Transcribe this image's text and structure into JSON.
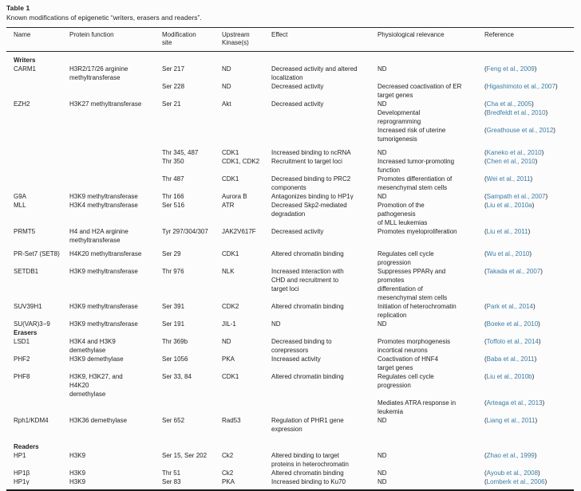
{
  "table": {
    "label": "Table 1",
    "caption": "Known modifications of epigenetic “writers, erasers and readers”.",
    "link_color": "#3b7ca7",
    "column_keys": [
      "name",
      "function",
      "site",
      "kinase",
      "effect",
      "relevance",
      "reference"
    ],
    "columns": [
      "Name",
      "Protein function",
      "Modification\nsite",
      "Upstream\nKinase(s)",
      "Effect",
      "Physiological relevance",
      "Reference"
    ],
    "rows": [
      {
        "type": "section",
        "label": "Writers"
      },
      {
        "type": "data",
        "cells": [
          "CARM1",
          "H3R2/17/26 arginine\nmethyltransferase",
          "Ser 217",
          "ND",
          "Decreased activity and altered\nlocalization",
          "ND"
        ],
        "ref": "Feng et al., 2009"
      },
      {
        "type": "data",
        "cells": [
          "",
          "",
          "Ser 228",
          "ND",
          "Decreased activity",
          "Decreased coactivation of ER\ntarget genes"
        ],
        "ref": "Higashimoto et al., 2007"
      },
      {
        "type": "data",
        "cells": [
          "EZH2",
          "H3K27 methyltransferase",
          "Ser 21",
          "Akt",
          "Decreased activity",
          "ND"
        ],
        "ref": "Cha et al., 2005"
      },
      {
        "type": "data",
        "cells": [
          "",
          "",
          "",
          "",
          "",
          "Developmental\nreprogramming"
        ],
        "ref": "Bredfeldt et al., 2010"
      },
      {
        "type": "data",
        "cells": [
          "",
          "",
          "",
          "",
          "",
          "Increased risk of uterine\ntumorigenesis"
        ],
        "ref": "Greathouse et al., 2012"
      },
      {
        "type": "data",
        "gap": "sm",
        "cells": [
          "",
          "",
          "Thr 345, 487",
          "CDK1",
          "Increased binding to ncRNA",
          "ND"
        ],
        "ref": "Kaneko et al., 2010"
      },
      {
        "type": "data",
        "cells": [
          "",
          "",
          "Thr 350",
          "CDK1, CDK2",
          "Recruitment to target loci",
          "Increased tumor-promoting\nfunction"
        ],
        "ref": "Chen et al., 2010"
      },
      {
        "type": "data",
        "cells": [
          "",
          "",
          "Thr 487",
          "CDK1",
          "Decreased binding to PRC2\ncomponents",
          "Promotes differentiation of\nmesenchymal stem cells"
        ],
        "ref": "Wei et al., 2011"
      },
      {
        "type": "data",
        "cells": [
          "G9A",
          "H3K9 methyltransferase",
          "Thr 166",
          "Aurora B",
          "Antagonizes binding to HP1γ",
          "ND"
        ],
        "ref": "Sampath et al., 2007"
      },
      {
        "type": "data",
        "cells": [
          "MLL",
          "H3K4 methyltransferase",
          "Ser 516",
          "ATR",
          "Decreased Skp2-mediated\ndegradation",
          "Promotion of the\npathogenesis\nof MLL leukemias"
        ],
        "ref": "Liu et al., 2010a"
      },
      {
        "type": "data",
        "cells": [
          "PRMT5",
          "H4 and H2A arginine\nmethyltransferase",
          "Tyr 297/304/307",
          "JAK2V617F",
          "Decreased activity",
          "Promotes myeloproliferation"
        ],
        "ref": "Liu et al., 2011"
      },
      {
        "type": "data",
        "gap": "sm",
        "cells": [
          "PR-Set7 (SET8)",
          "H4K20 methyltransferase",
          "Ser 29",
          "CDK1",
          "Altered chromatin binding",
          "Regulates cell cycle\nprogression"
        ],
        "ref": "Wu et al., 2010"
      },
      {
        "type": "data",
        "cells": [
          "SETDB1",
          "H3K9 methyltransferase",
          "Thr 976",
          "NLK",
          "Increased interaction with\nCHD and recruitment to\ntarget loci",
          "Suppresses PPARγ and\npromotes\ndifferentiation of\nmesenchymal stem cells"
        ],
        "ref": "Takada et al., 2007"
      },
      {
        "type": "data",
        "cells": [
          "SUV39H1",
          "H3K9 methyltransferase",
          "Ser 391",
          "CDK2",
          "Altered chromatin binding",
          "Initiation of heterochromatin\nreplication"
        ],
        "ref": "Park et al., 2014"
      },
      {
        "type": "data",
        "cells": [
          "SU(VAR)3−9",
          "H3K9 methyltransferase",
          "Ser 191",
          "JIL-1",
          "ND",
          "ND"
        ],
        "ref": "Boeke et al., 2010"
      },
      {
        "type": "section",
        "label": "Erasers"
      },
      {
        "type": "data",
        "cells": [
          "LSD1",
          "H3K4 and H3K9\ndemethylase",
          "Thr 369b",
          "ND",
          "Decreased binding to\ncorepressors",
          "Promotes morphogenesis\nincortical neurons"
        ],
        "ref": "Toffolo et al., 2014"
      },
      {
        "type": "data",
        "cells": [
          "PHF2",
          "H3K9 demethylase",
          "Ser 1056",
          "PKA",
          "Increased activity",
          "Coactivation of HNF4\ntarget genes"
        ],
        "ref": "Baba et al., 2011"
      },
      {
        "type": "data",
        "cells": [
          "PHF8",
          "H3K9, H3K27, and\nH4K20\ndemethylase",
          "Ser 33, 84",
          "CDK1",
          "Altered chromatin binding",
          "Regulates cell cycle\nprogression"
        ],
        "ref": "Liu et al., 2010b"
      },
      {
        "type": "data",
        "cells": [
          "",
          "",
          "",
          "",
          "",
          "Mediates ATRA response in\nleukemia"
        ],
        "ref": "Arteaga et al., 2013"
      },
      {
        "type": "data",
        "cells": [
          "Rph1/KDM4",
          "H3K36 demethylase",
          "Ser 652",
          "Rad53",
          "Regulation of PHR1 gene\nexpression",
          "ND"
        ],
        "ref": "Liang et al., 2011"
      },
      {
        "type": "section",
        "gap": "md",
        "label": "Readers"
      },
      {
        "type": "data",
        "cells": [
          "HP1",
          "H3K9",
          "Ser 15, Ser 202",
          "Ck2",
          "Altered binding to target\nproteins in heterochromatin",
          "ND"
        ],
        "ref": "Zhao et al., 1999"
      },
      {
        "type": "data",
        "cells": [
          "HP1β",
          "H3K9",
          "Thr 51",
          "Ck2",
          "Altered chromatin binding",
          "ND"
        ],
        "ref": "Ayoub et al., 2008"
      },
      {
        "type": "data",
        "cells": [
          "HP1γ",
          "H3K9",
          "Ser 83",
          "PKA",
          "Increased binding to Ku70",
          "ND"
        ],
        "ref": "Lomberk et al., 2006"
      }
    ]
  }
}
